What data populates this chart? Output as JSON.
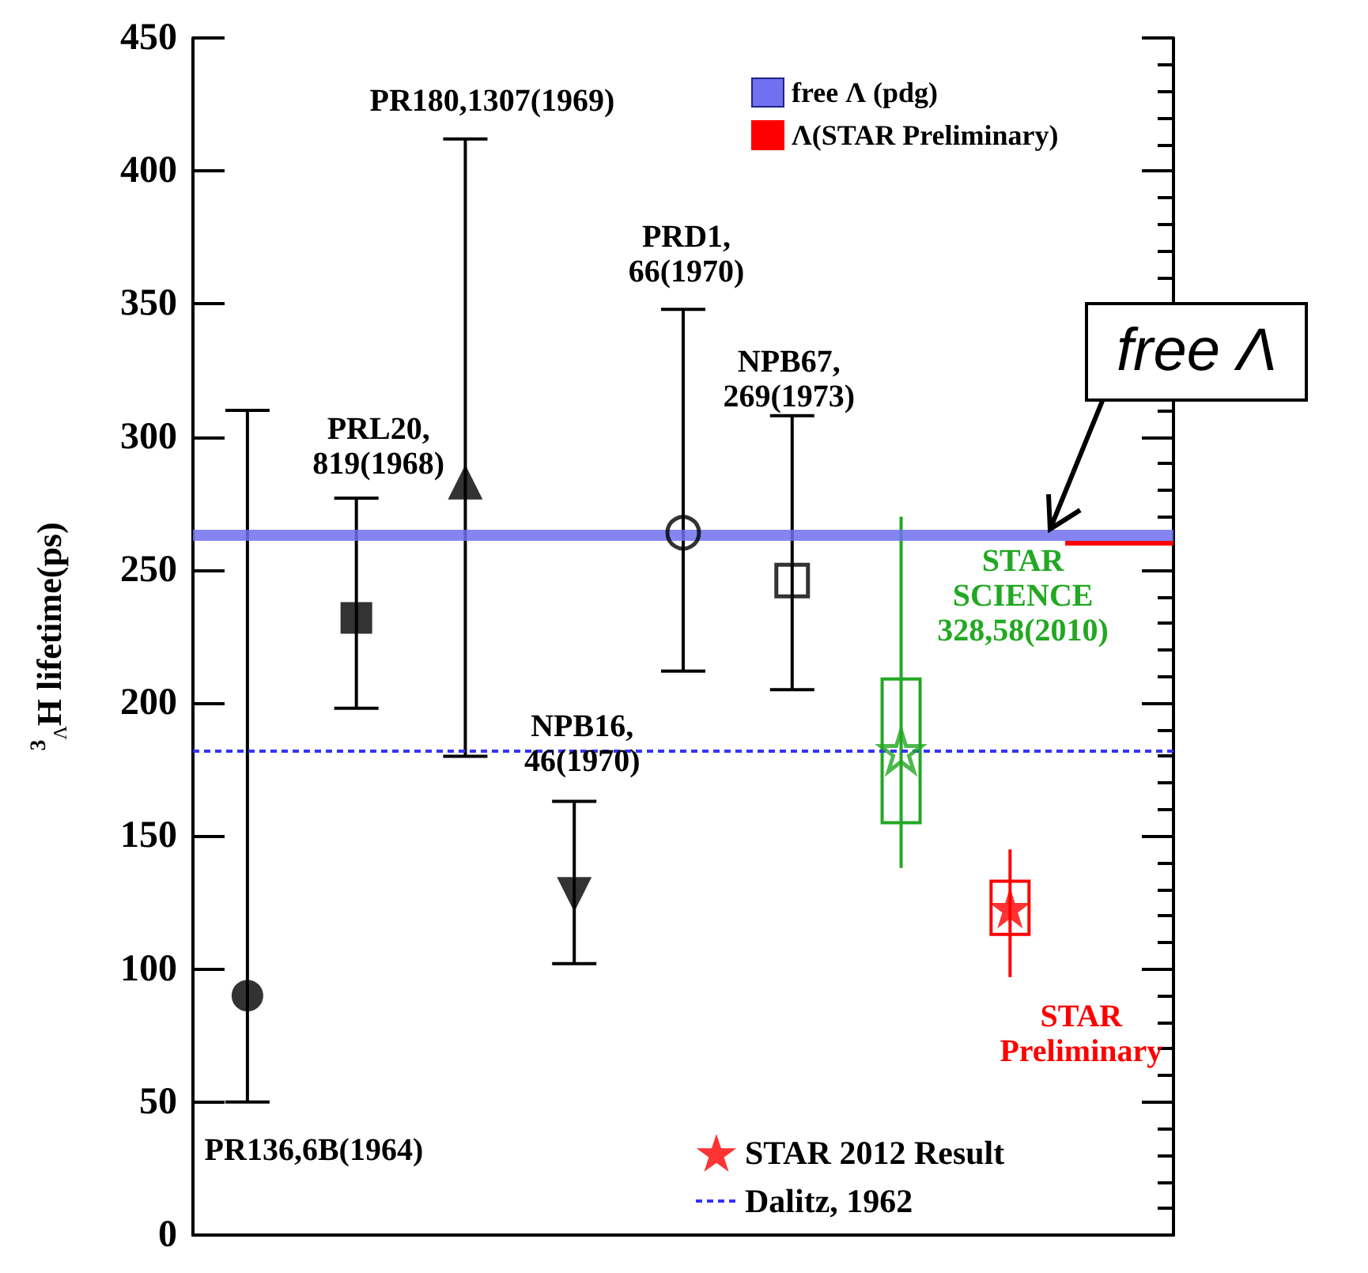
{
  "chart_data": {
    "type": "scatter",
    "ylabel": "$^{3}$$_{Λ}$H lifetime(ps)",
    "categories": [
      null,
      null,
      null,
      null,
      null,
      null,
      null,
      null,
      null
    ],
    "ylim": [
      0,
      450
    ],
    "yticks": [
      0,
      50,
      100,
      150,
      200,
      250,
      300,
      350,
      400,
      450
    ],
    "tick_labels": "y",
    "grid": false,
    "legend": "right",
    "series": [
      {
        "color": "#000000",
        "marker": "circle",
        "values": [
          90,
          null,
          null,
          null,
          null,
          null,
          null,
          null,
          null
        ],
        "errors": [
          [
            50,
            310
          ],
          null,
          null,
          null,
          null,
          null,
          null,
          null,
          null
        ]
      },
      {
        "color": "#000000",
        "marker": "square",
        "values": [
          null,
          232,
          null,
          null,
          null,
          null,
          null,
          null,
          null
        ],
        "errors": [
          null,
          [
            198,
            277
          ],
          null,
          null,
          null,
          null,
          null,
          null,
          null
        ]
      },
      {
        "color": "#000000",
        "marker": "triangle",
        "values": [
          null,
          null,
          283,
          null,
          null,
          null,
          null,
          null,
          null
        ],
        "errors": [
          null,
          null,
          [
            180,
            412
          ],
          null,
          null,
          null,
          null,
          null,
          null
        ]
      },
      {
        "color": "#000000",
        "marker": "triangle",
        "values": [
          null,
          null,
          null,
          128,
          null,
          null,
          null,
          null,
          null
        ],
        "errors": [
          null,
          null,
          null,
          [
            102,
            163
          ],
          null,
          null,
          null,
          null,
          null
        ]
      },
      {
        "color": "#000000",
        "marker": "circle",
        "values": [
          null,
          null,
          null,
          null,
          264,
          null,
          null,
          null,
          null
        ],
        "errors": [
          null,
          null,
          null,
          null,
          [
            212,
            348
          ],
          null,
          null,
          null,
          null
        ]
      },
      {
        "color": "#000000",
        "marker": "square",
        "values": [
          null,
          null,
          null,
          null,
          null,
          246,
          null,
          null,
          null
        ],
        "errors": [
          null,
          null,
          null,
          null,
          null,
          [
            205,
            308
          ],
          null,
          null,
          null
        ]
      },
      {
        "color": "#22a822",
        "marker": "star",
        "values": [
          null,
          null,
          null,
          null,
          null,
          null,
          182,
          null,
          null
        ],
        "errors": [
          null,
          null,
          null,
          null,
          null,
          null,
          [
            138,
            270
          ],
          null,
          null
        ]
      },
      {
        "type": "bar",
        "color": "#22a822",
        "values": [
          null,
          null,
          null,
          null,
          null,
          null,
          54,
          null,
          null
        ],
        "base": [
          null,
          null,
          null,
          null,
          null,
          null,
          155,
          null,
          null
        ]
      },
      {
        "name": "STAR 2012 Result",
        "color": "#ff0000",
        "marker": "star",
        "values": [
          null,
          null,
          null,
          null,
          null,
          null,
          null,
          123,
          null
        ],
        "errors": [
          null,
          null,
          null,
          null,
          null,
          null,
          null,
          [
            97,
            145
          ],
          null
        ]
      },
      {
        "type": "bar",
        "color": "#ff0000",
        "values": [
          null,
          null,
          null,
          null,
          null,
          null,
          null,
          20,
          null
        ],
        "base": [
          null,
          null,
          null,
          null,
          null,
          null,
          null,
          113,
          null
        ]
      }
    ],
    "ref_lines": [
      {
        "axis": "y",
        "value": 263,
        "label": "free Λ (pdg)",
        "color": "#7070f0",
        "line_style": "solid"
      },
      {
        "axis": "y",
        "value": 260,
        "label": "Λ(STAR Preliminary)",
        "color": "#ff0000",
        "line_style": "solid"
      },
      {
        "axis": "y",
        "value": 182,
        "label": "Dalitz, 1962",
        "color": "#3333ff",
        "line_style": "dotted"
      }
    ],
    "annotations": [
      "PR136,6B(1964)",
      "PRL20,\n819(1968)",
      "PR180,1307(1969)",
      "NPB16,\n46(1970)",
      "PRD1,\n66(1970)",
      "NPB67,\n269(1973)",
      "STAR\nSCIENCE\n328,58(2010)",
      "STAR\nPreliminary",
      "free Λ"
    ]
  }
}
